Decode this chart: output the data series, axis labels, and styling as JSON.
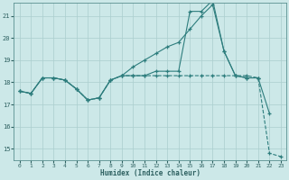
{
  "xlabel": "Humidex (Indice chaleur)",
  "bg_color": "#cce8e8",
  "line_color": "#2d7d7d",
  "grid_color": "#aacece",
  "xlim": [
    -0.5,
    23.5
  ],
  "ylim": [
    14.5,
    21.6
  ],
  "xticks": [
    0,
    1,
    2,
    3,
    4,
    5,
    6,
    7,
    8,
    9,
    10,
    11,
    12,
    13,
    14,
    15,
    16,
    17,
    18,
    19,
    20,
    21,
    22,
    23
  ],
  "yticks": [
    15,
    16,
    17,
    18,
    19,
    20,
    21
  ],
  "line1_x": [
    0,
    1,
    2,
    3,
    4,
    5,
    6,
    7,
    8,
    9,
    10,
    11,
    12,
    13,
    14,
    15,
    16,
    17,
    18,
    19,
    20,
    21
  ],
  "line1_y": [
    17.6,
    17.5,
    18.2,
    18.2,
    18.1,
    17.7,
    17.2,
    17.3,
    18.1,
    18.3,
    18.7,
    19.0,
    19.3,
    19.6,
    19.8,
    20.4,
    21.0,
    21.5,
    19.4,
    18.3,
    18.2,
    18.2
  ],
  "line2_x": [
    0,
    1,
    2,
    3,
    4,
    5,
    6,
    7,
    8,
    9,
    10,
    11,
    12,
    13,
    14,
    15,
    16,
    17,
    18,
    19,
    20,
    21,
    22
  ],
  "line2_y": [
    17.6,
    17.5,
    18.2,
    18.2,
    18.1,
    17.7,
    17.2,
    17.3,
    18.1,
    18.3,
    18.3,
    18.3,
    18.5,
    18.5,
    18.5,
    21.2,
    21.2,
    21.7,
    19.4,
    18.3,
    18.2,
    18.2,
    16.6
  ],
  "line3_x": [
    0,
    1,
    2,
    3,
    4,
    5,
    6,
    7,
    8,
    9,
    10,
    11,
    12,
    13,
    14,
    15,
    16,
    17,
    18,
    19,
    20,
    21,
    22,
    23
  ],
  "line3_y": [
    17.6,
    17.5,
    18.2,
    18.2,
    18.1,
    17.7,
    17.2,
    17.3,
    18.1,
    18.3,
    18.3,
    18.3,
    18.3,
    18.3,
    18.3,
    18.3,
    18.3,
    18.3,
    18.3,
    18.3,
    18.3,
    18.2,
    14.8,
    14.65
  ],
  "line3_dash": true
}
